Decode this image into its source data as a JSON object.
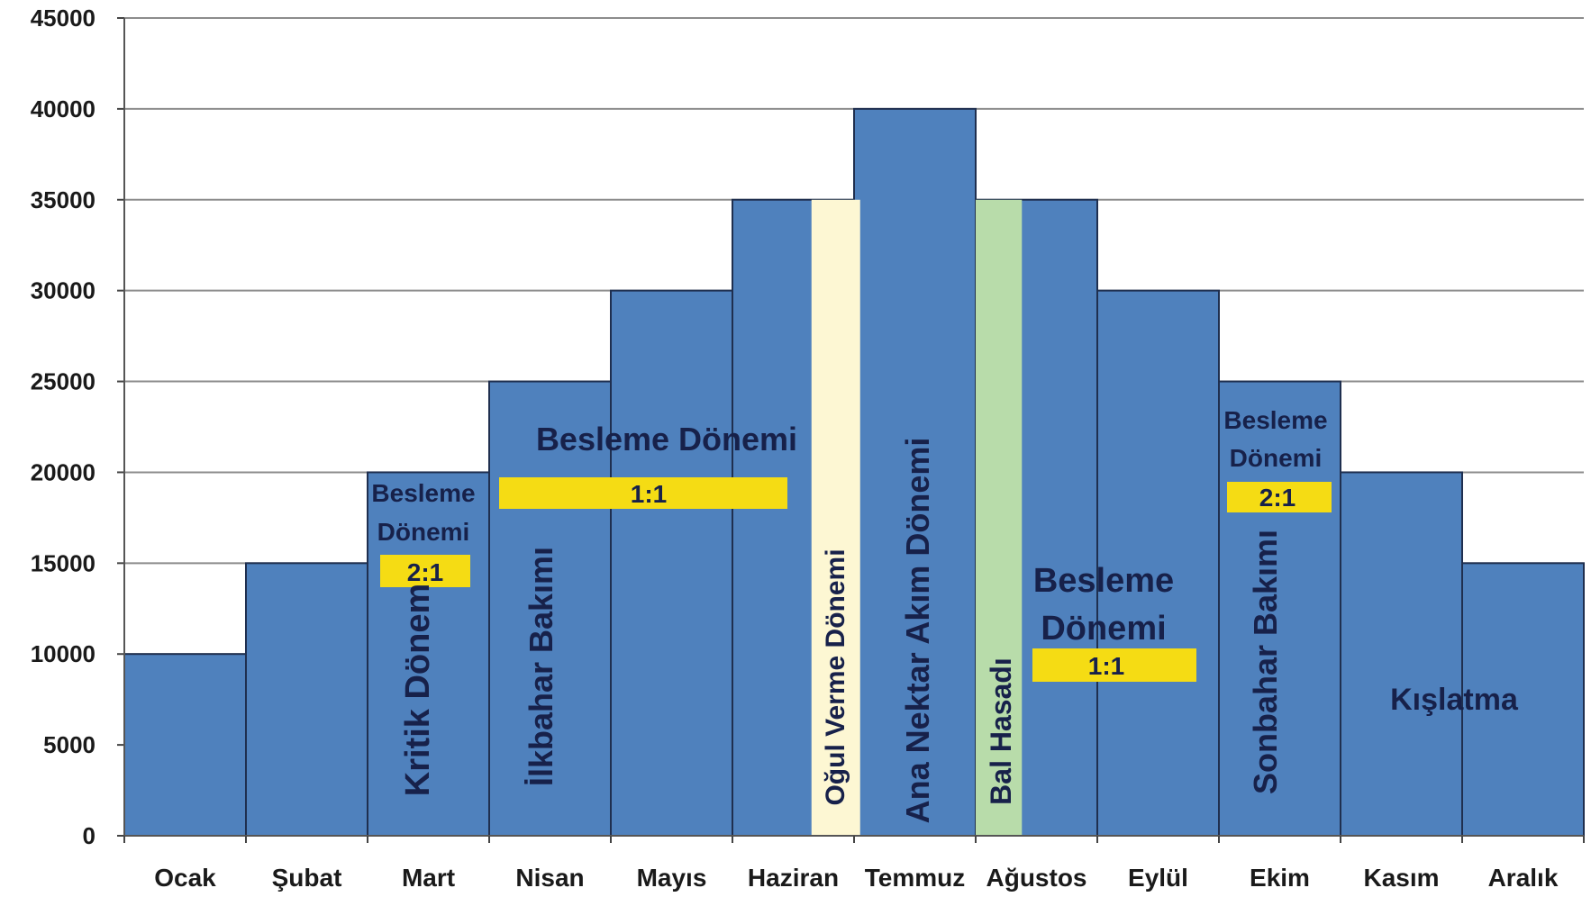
{
  "chart_data": {
    "type": "bar",
    "categories": [
      "Ocak",
      "Şubat",
      "Mart",
      "Nisan",
      "Mayıs",
      "Haziran",
      "Temmuz",
      "Ağustos",
      "Eylül",
      "Ekim",
      "Kasım",
      "Aralık"
    ],
    "values": [
      10000,
      15000,
      20000,
      25000,
      30000,
      35000,
      40000,
      35000,
      30000,
      25000,
      20000,
      15000
    ],
    "ylim": [
      0,
      45000
    ],
    "yticks": [
      0,
      5000,
      10000,
      15000,
      20000,
      25000,
      30000,
      35000,
      40000,
      45000
    ],
    "grid": true,
    "colors": {
      "bar": "#4f81bd",
      "bar_edge": "#1f2f4f",
      "grid": "#8c8c8c",
      "badge": "#f5dc14",
      "ogul_band": "#fdf7d3",
      "bal_band": "#b8dcaa",
      "annotation_text": "#17214a"
    },
    "bands": [
      {
        "label": "Oğul Verme Dönemi",
        "from": 5.65,
        "to": 6.05,
        "color": "#fdf7d3"
      },
      {
        "label": "Bal Hasadı",
        "from": 7.0,
        "to": 7.38,
        "color": "#b8dcaa"
      }
    ],
    "annotations": {
      "mart_top1": "Besleme",
      "mart_top2": "Dönemi",
      "mart_ratio": "2:1",
      "mart_vertical": "Kritik Dönem",
      "nisan_vertical": "İlkbahar Bakımı",
      "spring_title": "Besleme Dönemi",
      "spring_ratio": "1:1",
      "ogul_vertical": "Oğul Verme Dönemi",
      "temmuz_vertical": "Ana Nektar Akım Dönemi",
      "bal_vertical": "Bal Hasadı",
      "autumn_title1": "Besleme",
      "autumn_title2": "Dönemi",
      "autumn_ratio": "1:1",
      "ekim_top1": "Besleme",
      "ekim_top2": "Dönemi",
      "ekim_ratio": "2:1",
      "ekim_vertical": "Sonbahar Bakımı",
      "kislatma": "Kışlatma"
    }
  }
}
